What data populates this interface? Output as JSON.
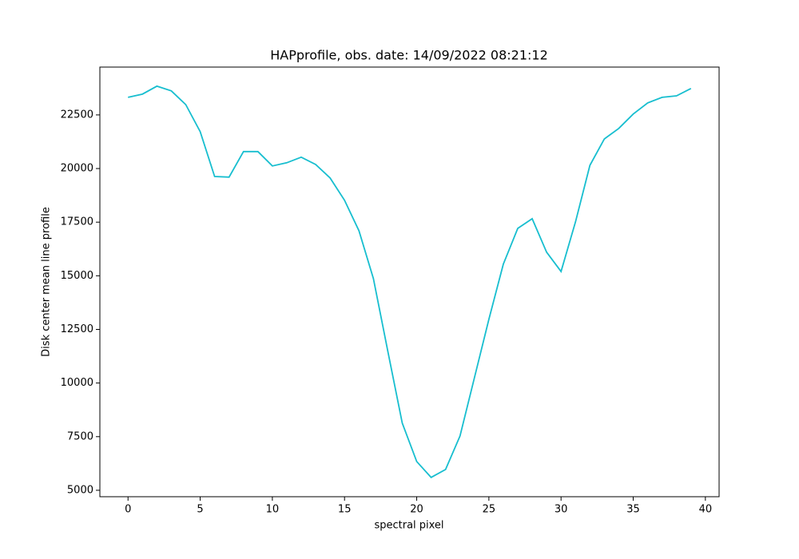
{
  "chart_data": {
    "type": "line",
    "title": "HAPprofile, obs. date: 14/09/2022 08:21:12",
    "xlabel": "spectral pixel",
    "ylabel": "Disk center mean line profile",
    "x": [
      0,
      1,
      2,
      3,
      4,
      5,
      6,
      7,
      8,
      9,
      10,
      11,
      12,
      13,
      14,
      15,
      16,
      17,
      18,
      19,
      20,
      21,
      22,
      23,
      24,
      25,
      26,
      27,
      28,
      29,
      30,
      31,
      32,
      33,
      34,
      35,
      36,
      37,
      38,
      39
    ],
    "series": [
      {
        "color": "#17becf",
        "values": [
          23320,
          23470,
          23840,
          23620,
          22980,
          21720,
          19630,
          19600,
          20790,
          20790,
          20120,
          20270,
          20530,
          20190,
          19560,
          18520,
          17100,
          14870,
          11480,
          8130,
          6340,
          5600,
          5970,
          7530,
          10250,
          12970,
          15540,
          17210,
          17660,
          16100,
          15200,
          17510,
          20150,
          21380,
          21870,
          22540,
          23060,
          23320,
          23390,
          23730
        ]
      }
    ],
    "xlim": [
      -1.95,
      40.95
    ],
    "xticks": [
      0,
      5,
      10,
      15,
      20,
      25,
      30,
      35,
      40
    ],
    "ylim": [
      4700,
      24730
    ],
    "yticks": [
      5000,
      7500,
      10000,
      12500,
      15000,
      17500,
      20000,
      22500
    ],
    "grid": false
  }
}
